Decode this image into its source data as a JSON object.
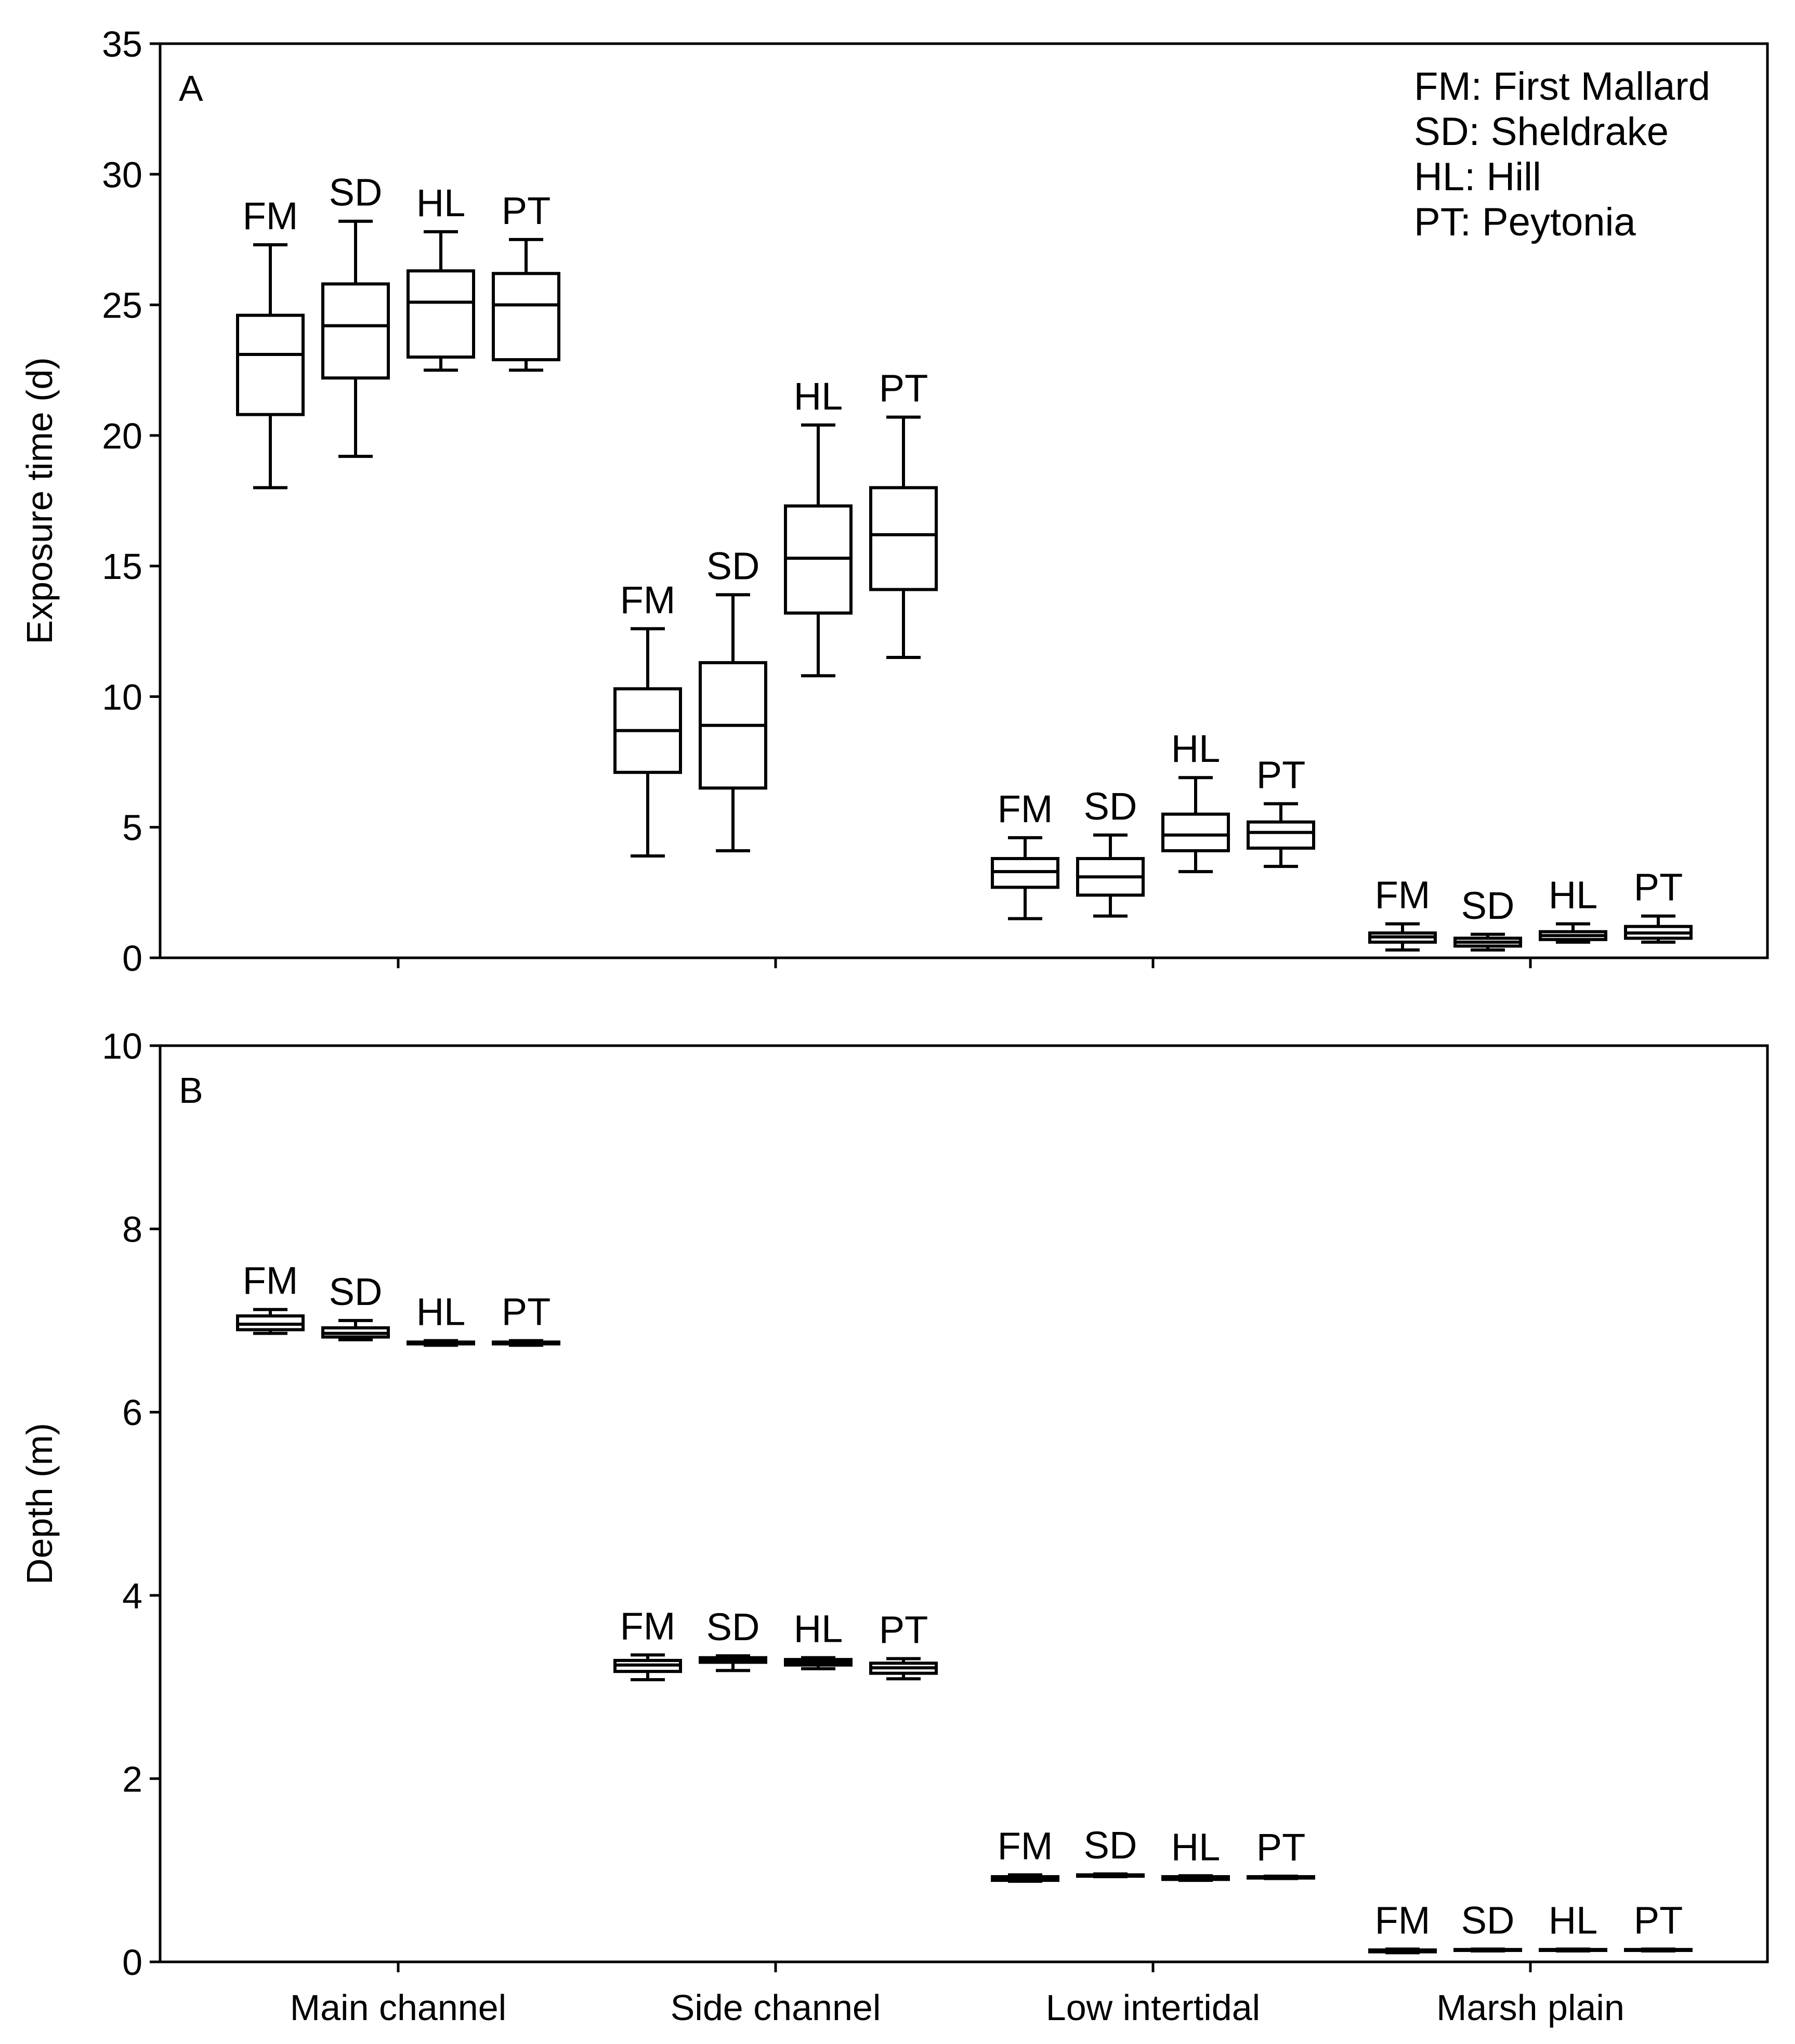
{
  "chart_data": [
    {
      "type": "boxplot",
      "panel_label": "A",
      "ylabel": "Exposure time (d)",
      "ylim": [
        0,
        35
      ],
      "yticks": [
        "0",
        "5",
        "10",
        "15",
        "20",
        "25",
        "30",
        "35"
      ],
      "show_group_labels": false,
      "groups": [
        "Main channel",
        "Side channel",
        "Low intertidal",
        "Marsh plain"
      ],
      "legend": [
        "FM: First Mallard",
        "SD: Sheldrake",
        "HL: Hill",
        "PT: Peytonia"
      ],
      "boxes": [
        {
          "group": "Main channel",
          "site": "FM",
          "min": 18.0,
          "q1": 20.8,
          "median": 23.1,
          "q3": 24.6,
          "max": 27.3
        },
        {
          "group": "Main channel",
          "site": "SD",
          "min": 19.2,
          "q1": 22.2,
          "median": 24.2,
          "q3": 25.8,
          "max": 28.2
        },
        {
          "group": "Main channel",
          "site": "HL",
          "min": 22.5,
          "q1": 23.0,
          "median": 25.1,
          "q3": 26.3,
          "max": 27.8
        },
        {
          "group": "Main channel",
          "site": "PT",
          "min": 22.5,
          "q1": 22.9,
          "median": 25.0,
          "q3": 26.2,
          "max": 27.5
        },
        {
          "group": "Side channel",
          "site": "FM",
          "min": 3.9,
          "q1": 7.1,
          "median": 8.7,
          "q3": 10.3,
          "max": 12.6
        },
        {
          "group": "Side channel",
          "site": "SD",
          "min": 4.1,
          "q1": 6.5,
          "median": 8.9,
          "q3": 11.3,
          "max": 13.9
        },
        {
          "group": "Side channel",
          "site": "HL",
          "min": 10.8,
          "q1": 13.2,
          "median": 15.3,
          "q3": 17.3,
          "max": 20.4
        },
        {
          "group": "Side channel",
          "site": "PT",
          "min": 11.5,
          "q1": 14.1,
          "median": 16.2,
          "q3": 18.0,
          "max": 20.7
        },
        {
          "group": "Low intertidal",
          "site": "FM",
          "min": 1.5,
          "q1": 2.7,
          "median": 3.3,
          "q3": 3.8,
          "max": 4.6
        },
        {
          "group": "Low intertidal",
          "site": "SD",
          "min": 1.6,
          "q1": 2.4,
          "median": 3.1,
          "q3": 3.8,
          "max": 4.7
        },
        {
          "group": "Low intertidal",
          "site": "HL",
          "min": 3.3,
          "q1": 4.1,
          "median": 4.7,
          "q3": 5.5,
          "max": 6.9
        },
        {
          "group": "Low intertidal",
          "site": "PT",
          "min": 3.5,
          "q1": 4.2,
          "median": 4.8,
          "q3": 5.2,
          "max": 5.9
        },
        {
          "group": "Marsh plain",
          "site": "FM",
          "min": 0.3,
          "q1": 0.6,
          "median": 0.8,
          "q3": 0.95,
          "max": 1.3
        },
        {
          "group": "Marsh plain",
          "site": "SD",
          "min": 0.3,
          "q1": 0.45,
          "median": 0.6,
          "q3": 0.75,
          "max": 0.9
        },
        {
          "group": "Marsh plain",
          "site": "HL",
          "min": 0.6,
          "q1": 0.7,
          "median": 0.85,
          "q3": 1.0,
          "max": 1.3
        },
        {
          "group": "Marsh plain",
          "site": "PT",
          "min": 0.6,
          "q1": 0.75,
          "median": 0.95,
          "q3": 1.2,
          "max": 1.6
        }
      ]
    },
    {
      "type": "boxplot",
      "panel_label": "B",
      "ylabel": "Depth (m)",
      "ylim": [
        0,
        10
      ],
      "yticks": [
        "0",
        "2",
        "4",
        "6",
        "8",
        "10"
      ],
      "show_group_labels": true,
      "groups": [
        "Main channel",
        "Side channel",
        "Low intertidal",
        "Marsh plain"
      ],
      "legend": [],
      "boxes": [
        {
          "group": "Main channel",
          "site": "FM",
          "min": 6.86,
          "q1": 6.9,
          "median": 6.96,
          "q3": 7.05,
          "max": 7.12
        },
        {
          "group": "Main channel",
          "site": "SD",
          "min": 6.79,
          "q1": 6.82,
          "median": 6.86,
          "q3": 6.92,
          "max": 7.0
        },
        {
          "group": "Main channel",
          "site": "HL",
          "min": 6.73,
          "q1": 6.745,
          "median": 6.75,
          "q3": 6.765,
          "max": 6.78
        },
        {
          "group": "Main channel",
          "site": "PT",
          "min": 6.73,
          "q1": 6.745,
          "median": 6.75,
          "q3": 6.765,
          "max": 6.78
        },
        {
          "group": "Side channel",
          "site": "FM",
          "min": 3.08,
          "q1": 3.17,
          "median": 3.24,
          "q3": 3.29,
          "max": 3.35
        },
        {
          "group": "Side channel",
          "site": "SD",
          "min": 3.18,
          "q1": 3.27,
          "median": 3.3,
          "q3": 3.32,
          "max": 3.34
        },
        {
          "group": "Side channel",
          "site": "HL",
          "min": 3.2,
          "q1": 3.24,
          "median": 3.27,
          "q3": 3.3,
          "max": 3.32
        },
        {
          "group": "Side channel",
          "site": "PT",
          "min": 3.09,
          "q1": 3.15,
          "median": 3.21,
          "q3": 3.26,
          "max": 3.31
        },
        {
          "group": "Low intertidal",
          "site": "FM",
          "min": 0.88,
          "q1": 0.89,
          "median": 0.91,
          "q3": 0.93,
          "max": 0.95
        },
        {
          "group": "Low intertidal",
          "site": "SD",
          "min": 0.93,
          "q1": 0.935,
          "median": 0.94,
          "q3": 0.95,
          "max": 0.96
        },
        {
          "group": "Low intertidal",
          "site": "HL",
          "min": 0.89,
          "q1": 0.9,
          "median": 0.91,
          "q3": 0.93,
          "max": 0.94
        },
        {
          "group": "Low intertidal",
          "site": "PT",
          "min": 0.91,
          "q1": 0.915,
          "median": 0.92,
          "q3": 0.93,
          "max": 0.935
        },
        {
          "group": "Marsh plain",
          "site": "FM",
          "min": 0.1,
          "q1": 0.11,
          "median": 0.12,
          "q3": 0.13,
          "max": 0.14
        },
        {
          "group": "Marsh plain",
          "site": "SD",
          "min": 0.12,
          "q1": 0.125,
          "median": 0.13,
          "q3": 0.135,
          "max": 0.14
        },
        {
          "group": "Marsh plain",
          "site": "HL",
          "min": 0.12,
          "q1": 0.125,
          "median": 0.13,
          "q3": 0.135,
          "max": 0.14
        },
        {
          "group": "Marsh plain",
          "site": "PT",
          "min": 0.12,
          "q1": 0.125,
          "median": 0.13,
          "q3": 0.135,
          "max": 0.14
        }
      ]
    }
  ]
}
